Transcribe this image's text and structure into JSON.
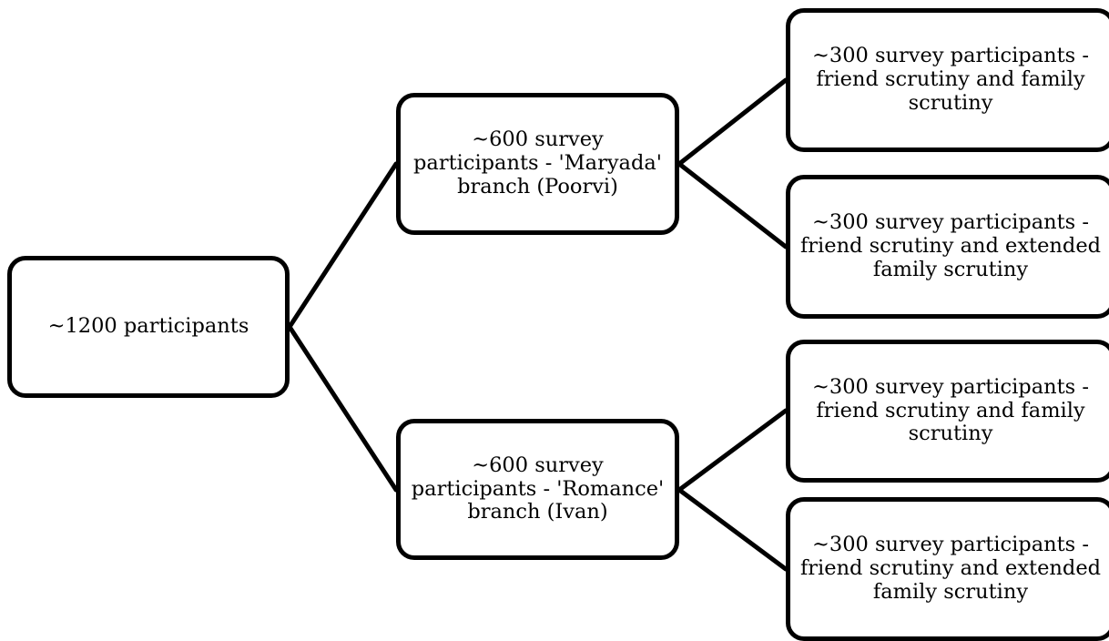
{
  "diagram": {
    "root": {
      "label": "~1200 participants"
    },
    "branches": [
      {
        "label": "~600 survey participants - 'Maryada' branch (Poorvi)",
        "children": [
          {
            "label": "~300 survey participants - friend scrutiny and family scrutiny"
          },
          {
            "label": "~300 survey participants - friend scrutiny and extended family scrutiny"
          }
        ]
      },
      {
        "label": "~600 survey participants - 'Romance' branch (Ivan)",
        "children": [
          {
            "label": "~300 survey participants - friend scrutiny and family scrutiny"
          },
          {
            "label": "~300 survey participants - friend scrutiny and extended family scrutiny"
          }
        ]
      }
    ],
    "colors": {
      "border": "#000000",
      "fill": "#ffffff",
      "text": "#000000"
    }
  }
}
